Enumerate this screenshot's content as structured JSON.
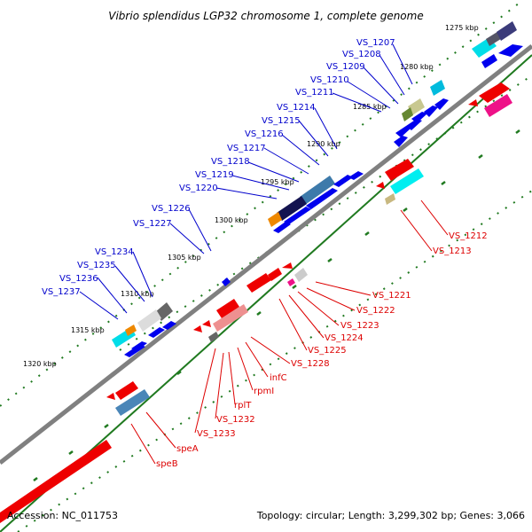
{
  "title": "Vibrio splendidus LGP32 chromosome 1, complete genome",
  "accession": "Accession: NC_011753",
  "topology": "Topology: circular; Length: 3,299,302 bp; Genes: 3,066",
  "colors": {
    "backbone": "#808080",
    "forward_gene": "#0000ee",
    "reverse_gene": "#ee0000",
    "reverse_label": "#dd0000",
    "forward_label": "#0000cc",
    "tick": "#207a20"
  },
  "kbp_ticks": [
    "1275 kbp",
    "1280 kbp",
    "1285 kbp",
    "1290 kbp",
    "1295 kbp",
    "1300 kbp",
    "1305 kbp",
    "1310 kbp",
    "1315 kbp",
    "1320 kbp"
  ],
  "forward_genes": [
    "VS_1207",
    "VS_1208",
    "VS_1209",
    "VS_1210",
    "VS_1211",
    "VS_1214",
    "VS_1215",
    "VS_1216",
    "VS_1217",
    "VS_1218",
    "VS_1219",
    "VS_1220",
    "VS_1226",
    "VS_1227",
    "VS_1234",
    "VS_1235",
    "VS_1236",
    "VS_1237"
  ],
  "reverse_genes": [
    "VS_1212",
    "VS_1213",
    "VS_1221",
    "VS_1222",
    "VS_1223",
    "VS_1224",
    "VS_1225",
    "VS_1228",
    "infC",
    "rpmI",
    "rplT",
    "VS_1232",
    "VS_1233",
    "speA",
    "speB"
  ]
}
